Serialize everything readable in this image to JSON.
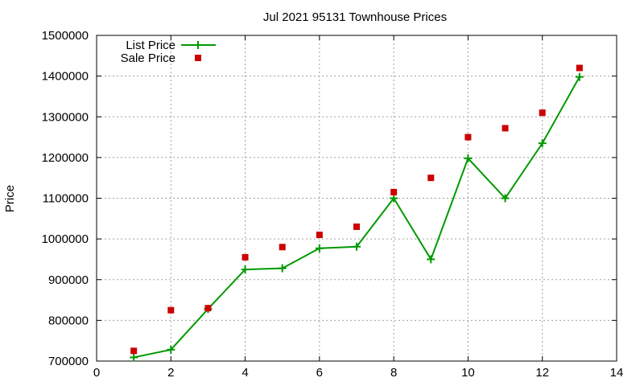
{
  "chart_data": {
    "type": "line",
    "title": "Jul 2021 95131 Townhouse Prices",
    "xlabel": "",
    "ylabel": "Price",
    "xlim": [
      0,
      14
    ],
    "ylim": [
      700000,
      1500000
    ],
    "x_ticks": [
      0,
      2,
      4,
      6,
      8,
      10,
      12,
      14
    ],
    "y_ticks": [
      700000,
      800000,
      900000,
      1000000,
      1100000,
      1200000,
      1300000,
      1400000,
      1500000
    ],
    "grid": true,
    "legend_position": "top-left",
    "series": [
      {
        "name": "List Price",
        "style": "line+cross",
        "color": "#009900",
        "x": [
          1,
          2,
          3,
          4,
          5,
          6,
          7,
          8,
          9,
          10,
          11,
          12,
          13
        ],
        "y": [
          709000,
          728000,
          828000,
          925000,
          928000,
          977000,
          981000,
          1100000,
          950000,
          1198000,
          1100000,
          1235000,
          1398000
        ]
      },
      {
        "name": "Sale Price",
        "style": "square",
        "color": "#cc0000",
        "x": [
          1,
          2,
          3,
          4,
          5,
          6,
          7,
          8,
          9,
          10,
          11,
          12,
          13
        ],
        "y": [
          725000,
          825000,
          830000,
          955000,
          980000,
          1010000,
          1030000,
          1115000,
          1150000,
          1250000,
          1272000,
          1310000,
          1420000
        ]
      }
    ]
  }
}
